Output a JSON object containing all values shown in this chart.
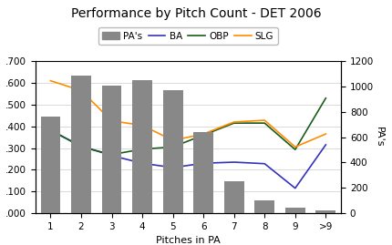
{
  "title": "Performance by Pitch Count - DET 2006",
  "xlabel": "Pitches in PA",
  "ylabel_right": "PA's",
  "categories": [
    "1",
    "2",
    "3",
    "4",
    "5",
    "6",
    "7",
    "8",
    "9",
    ">9"
  ],
  "pa_values": [
    760,
    1090,
    1010,
    1050,
    970,
    640,
    255,
    100,
    45,
    20
  ],
  "ba_values": [
    0.38,
    0.31,
    0.265,
    0.23,
    0.21,
    0.23,
    0.235,
    0.228,
    0.115,
    0.315
  ],
  "obp_values": [
    0.385,
    0.305,
    0.27,
    0.295,
    0.305,
    0.36,
    0.415,
    0.415,
    0.293,
    0.53
  ],
  "slg_values": [
    0.61,
    0.565,
    0.425,
    0.405,
    0.335,
    0.365,
    0.42,
    0.428,
    0.305,
    0.365
  ],
  "bar_color": "#888888",
  "ba_color": "#3333bb",
  "obp_color": "#1a5c1a",
  "slg_color": "#ff8c00",
  "ylim_left": [
    0.0,
    0.7
  ],
  "ylim_right": [
    0,
    1200
  ],
  "yticks_left": [
    0.0,
    0.1,
    0.2,
    0.3,
    0.4,
    0.5,
    0.6,
    0.7
  ],
  "ytick_labels_left": [
    ".000",
    ".100",
    ".200",
    ".300",
    ".400",
    ".500",
    ".600",
    ".700"
  ],
  "yticks_right": [
    0,
    200,
    400,
    600,
    800,
    1000,
    1200
  ],
  "background_color": "#ffffff",
  "title_fontsize": 10,
  "label_fontsize": 8,
  "tick_fontsize": 7.5
}
